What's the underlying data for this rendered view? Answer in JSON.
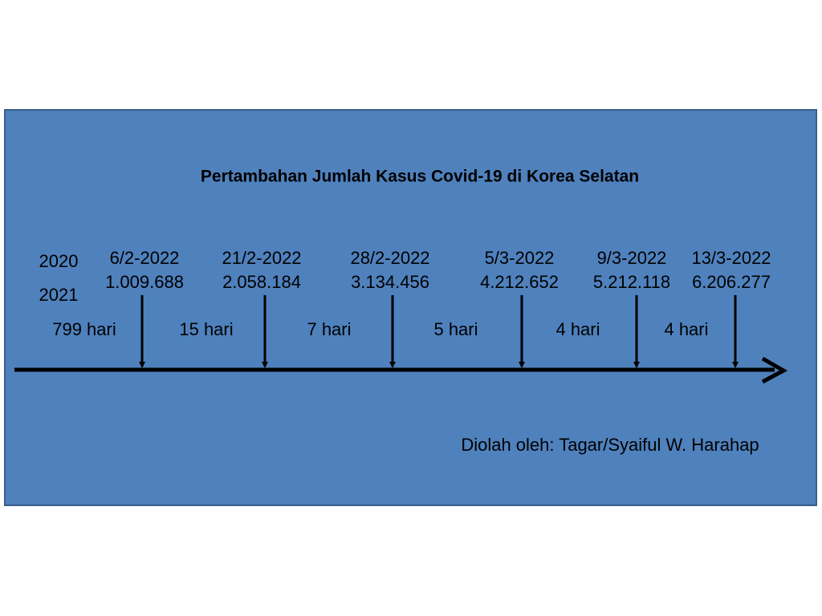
{
  "title": "Pertambahan Jumlah Kasus Covid-19 di Korea Selatan",
  "start": {
    "labels": [
      "2020",
      "2021"
    ]
  },
  "events": [
    {
      "date": "6/2-2022",
      "count": "1.009.688"
    },
    {
      "date": "21/2-2022",
      "count": "2.058.184"
    },
    {
      "date": "28/2-2022",
      "count": "3.134.456"
    },
    {
      "date": "5/3-2022",
      "count": "4.212.652"
    },
    {
      "date": "9/3-2022",
      "count": "5.212.118"
    },
    {
      "date": "13/3-2022",
      "count": "6.206.277"
    }
  ],
  "intervals": [
    "799 hari",
    "15 hari",
    "7 hari",
    "5 hari",
    "4 hari",
    "4 hari"
  ],
  "credit": "Diolah oleh: Tagar/Syaiful W. Harahap"
}
